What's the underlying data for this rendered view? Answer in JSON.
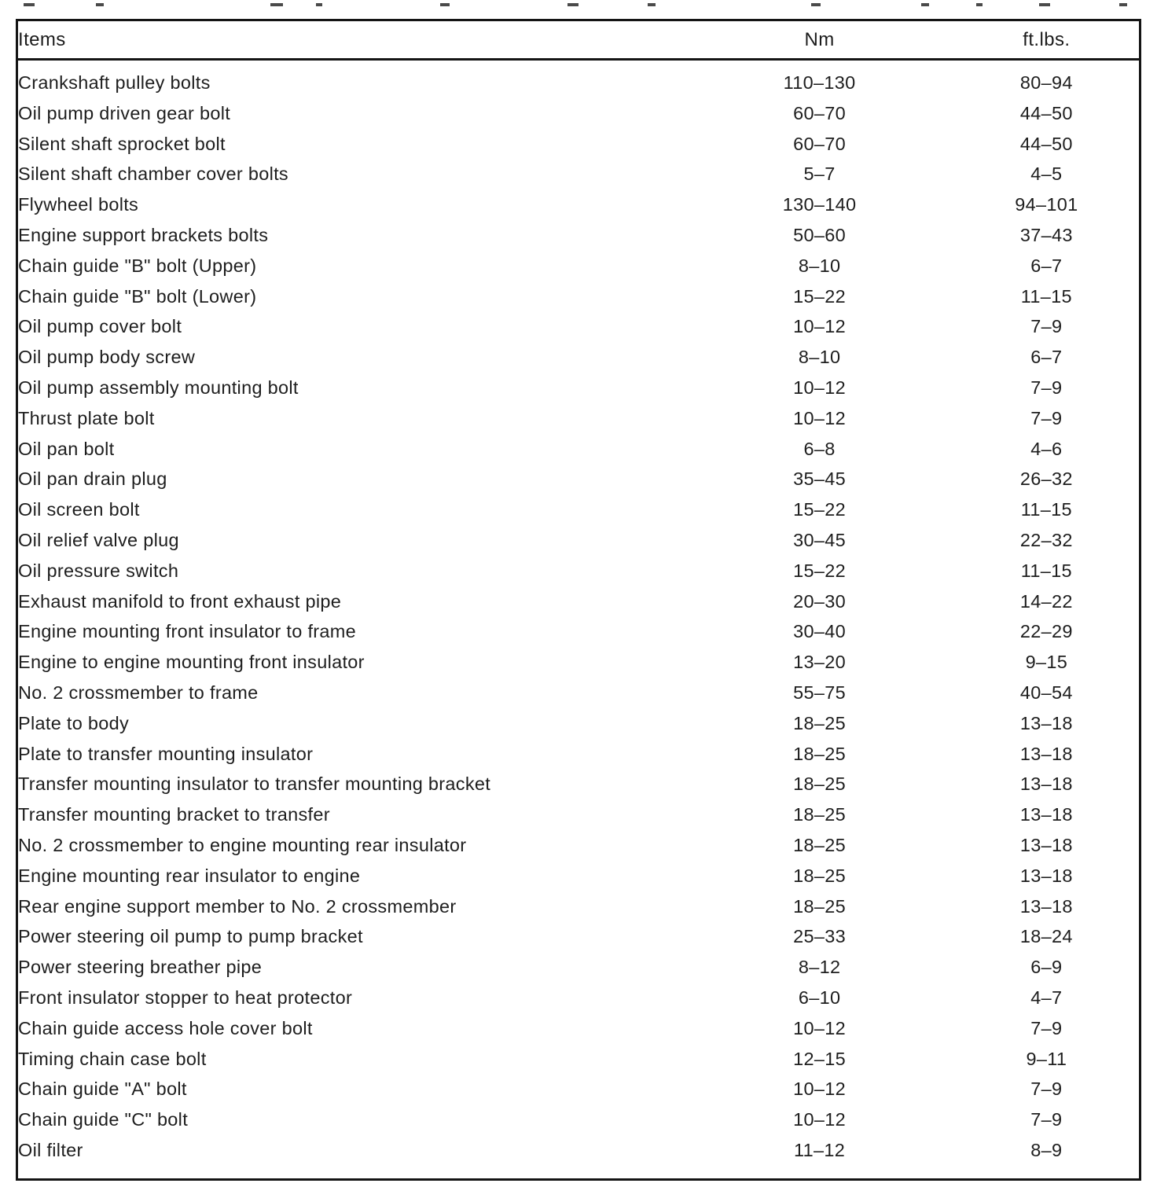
{
  "table": {
    "columns": [
      "Items",
      "Nm",
      "ft.lbs."
    ],
    "rows": [
      {
        "item": "Crankshaft pulley bolts",
        "nm": "110–130",
        "ftlbs": "80–94"
      },
      {
        "item": "Oil pump driven gear bolt",
        "nm": "60–70",
        "ftlbs": "44–50"
      },
      {
        "item": "Silent shaft sprocket bolt",
        "nm": "60–70",
        "ftlbs": "44–50"
      },
      {
        "item": "Silent shaft chamber cover bolts",
        "nm": "5–7",
        "ftlbs": "4–5"
      },
      {
        "item": "Flywheel bolts",
        "nm": "130–140",
        "ftlbs": "94–101"
      },
      {
        "item": "Engine support brackets bolts",
        "nm": "50–60",
        "ftlbs": "37–43"
      },
      {
        "item": "Chain guide \"B\" bolt (Upper)",
        "nm": "8–10",
        "ftlbs": "6–7"
      },
      {
        "item": "Chain guide \"B\" bolt (Lower)",
        "nm": "15–22",
        "ftlbs": "11–15"
      },
      {
        "item": "Oil pump cover bolt",
        "nm": "10–12",
        "ftlbs": "7–9"
      },
      {
        "item": "Oil pump body screw",
        "nm": "8–10",
        "ftlbs": "6–7"
      },
      {
        "item": "Oil pump assembly mounting bolt",
        "nm": "10–12",
        "ftlbs": "7–9"
      },
      {
        "item": "Thrust plate bolt",
        "nm": "10–12",
        "ftlbs": "7–9"
      },
      {
        "item": "Oil pan bolt",
        "nm": "6–8",
        "ftlbs": "4–6"
      },
      {
        "item": "Oil pan drain plug",
        "nm": "35–45",
        "ftlbs": "26–32"
      },
      {
        "item": "Oil screen bolt",
        "nm": "15–22",
        "ftlbs": "11–15"
      },
      {
        "item": "Oil relief valve plug",
        "nm": "30–45",
        "ftlbs": "22–32"
      },
      {
        "item": "Oil pressure switch",
        "nm": "15–22",
        "ftlbs": "11–15"
      },
      {
        "item": "Exhaust manifold to front exhaust pipe",
        "nm": "20–30",
        "ftlbs": "14–22"
      },
      {
        "item": "Engine mounting front insulator to frame",
        "nm": "30–40",
        "ftlbs": "22–29"
      },
      {
        "item": "Engine to engine mounting front insulator",
        "nm": "13–20",
        "ftlbs": "9–15"
      },
      {
        "item": "No. 2 crossmember to frame",
        "nm": "55–75",
        "ftlbs": "40–54"
      },
      {
        "item": "Plate to body",
        "nm": "18–25",
        "ftlbs": "13–18"
      },
      {
        "item": "Plate to transfer mounting insulator",
        "nm": "18–25",
        "ftlbs": "13–18"
      },
      {
        "item": "Transfer mounting insulator to transfer mounting bracket",
        "nm": "18–25",
        "ftlbs": "13–18"
      },
      {
        "item": "Transfer mounting bracket to transfer",
        "nm": "18–25",
        "ftlbs": "13–18"
      },
      {
        "item": "No. 2 crossmember to engine mounting rear insulator",
        "nm": "18–25",
        "ftlbs": "13–18"
      },
      {
        "item": "Engine mounting rear insulator to engine",
        "nm": "18–25",
        "ftlbs": "13–18"
      },
      {
        "item": "Rear engine support member to No. 2 crossmember",
        "nm": "18–25",
        "ftlbs": "13–18"
      },
      {
        "item": "Power steering oil pump to pump bracket",
        "nm": "25–33",
        "ftlbs": "18–24"
      },
      {
        "item": "Power steering breather pipe",
        "nm": "8–12",
        "ftlbs": "6–9"
      },
      {
        "item": "Front insulator stopper to heat protector",
        "nm": "6–10",
        "ftlbs": "4–7"
      },
      {
        "item": "Chain guide access hole cover bolt",
        "nm": "10–12",
        "ftlbs": "7–9"
      },
      {
        "item": "Timing chain case bolt",
        "nm": "12–15",
        "ftlbs": "9–11"
      },
      {
        "item": "Chain guide \"A\" bolt",
        "nm": "10–12",
        "ftlbs": "7–9"
      },
      {
        "item": "Chain guide \"C\" bolt",
        "nm": "10–12",
        "ftlbs": "7–9"
      },
      {
        "item": "Oil filter",
        "nm": "11–12",
        "ftlbs": "8–9"
      }
    ]
  }
}
